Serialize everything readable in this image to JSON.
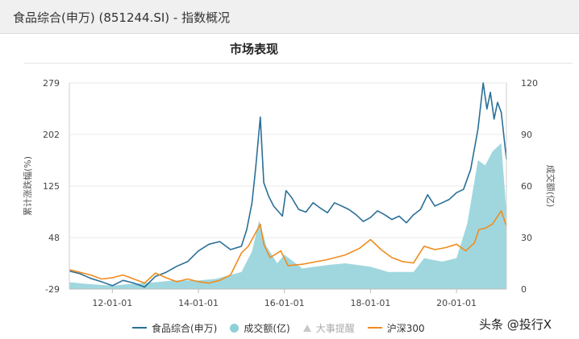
{
  "header": {
    "title": "食品综合(申万) (851244.SI) - 指数概况"
  },
  "section": {
    "title": "市场表现"
  },
  "legend": {
    "items": [
      {
        "label": "食品综合(申万)",
        "color": "#2a6f97",
        "marker": "line"
      },
      {
        "label": "成交额(亿)",
        "color": "#8fd0d8",
        "marker": "dot"
      },
      {
        "label": "大事提醒",
        "color": "#c8c8c8",
        "marker": "triangle"
      },
      {
        "label": "沪深300",
        "color": "#f08c1e",
        "marker": "line"
      }
    ]
  },
  "watermark": "头条 @投行X",
  "chart_data": {
    "type": "line",
    "x_tick_labels": [
      "12-01-01",
      "14-01-01",
      "16-01-01",
      "18-01-01",
      "20-01-01"
    ],
    "x_tick_dates": [
      "2012-01-01",
      "2014-01-01",
      "2016-01-01",
      "2018-01-01",
      "2020-01-01"
    ],
    "x_range": [
      "2011-01-01",
      "2021-02-28"
    ],
    "y_left": {
      "label": "累计涨跌幅(%)",
      "ticks": [
        279,
        202,
        125,
        48,
        -29
      ],
      "range": [
        -29,
        279
      ]
    },
    "y_right": {
      "label": "成交额(亿)",
      "ticks": [
        120,
        90,
        60,
        30,
        0
      ],
      "range": [
        0,
        120
      ]
    },
    "grid": "horizontal",
    "legend_position": "bottom",
    "series": [
      {
        "name": "食品综合(申万)",
        "axis": "left",
        "style": "line",
        "color": "#2a6f97",
        "points": [
          [
            "2011-01-01",
            -2
          ],
          [
            "2011-04-01",
            -6
          ],
          [
            "2011-07-01",
            -13
          ],
          [
            "2011-10-01",
            -18
          ],
          [
            "2012-01-01",
            -24
          ],
          [
            "2012-04-01",
            -16
          ],
          [
            "2012-07-01",
            -20
          ],
          [
            "2012-10-01",
            -26
          ],
          [
            "2013-01-01",
            -10
          ],
          [
            "2013-04-01",
            -4
          ],
          [
            "2013-07-01",
            5
          ],
          [
            "2013-10-01",
            12
          ],
          [
            "2014-01-01",
            28
          ],
          [
            "2014-04-01",
            38
          ],
          [
            "2014-07-01",
            42
          ],
          [
            "2014-10-01",
            30
          ],
          [
            "2015-01-01",
            35
          ],
          [
            "2015-02-15",
            60
          ],
          [
            "2015-04-01",
            100
          ],
          [
            "2015-05-01",
            150
          ],
          [
            "2015-06-10",
            228
          ],
          [
            "2015-07-10",
            130
          ],
          [
            "2015-08-20",
            110
          ],
          [
            "2015-10-01",
            95
          ],
          [
            "2015-12-15",
            80
          ],
          [
            "2016-01-15",
            118
          ],
          [
            "2016-03-01",
            108
          ],
          [
            "2016-05-01",
            90
          ],
          [
            "2016-07-01",
            86
          ],
          [
            "2016-09-01",
            100
          ],
          [
            "2016-11-01",
            92
          ],
          [
            "2017-01-01",
            85
          ],
          [
            "2017-03-01",
            100
          ],
          [
            "2017-05-01",
            95
          ],
          [
            "2017-07-01",
            90
          ],
          [
            "2017-09-01",
            82
          ],
          [
            "2017-11-01",
            72
          ],
          [
            "2018-01-01",
            78
          ],
          [
            "2018-03-01",
            88
          ],
          [
            "2018-05-01",
            82
          ],
          [
            "2018-07-01",
            75
          ],
          [
            "2018-09-01",
            80
          ],
          [
            "2018-11-01",
            70
          ],
          [
            "2019-01-01",
            82
          ],
          [
            "2019-03-01",
            90
          ],
          [
            "2019-05-01",
            112
          ],
          [
            "2019-07-01",
            95
          ],
          [
            "2019-09-01",
            100
          ],
          [
            "2019-11-01",
            105
          ],
          [
            "2020-01-01",
            115
          ],
          [
            "2020-03-01",
            120
          ],
          [
            "2020-05-01",
            150
          ],
          [
            "2020-07-01",
            210
          ],
          [
            "2020-08-15",
            279
          ],
          [
            "2020-09-15",
            240
          ],
          [
            "2020-10-15",
            265
          ],
          [
            "2020-11-15",
            225
          ],
          [
            "2020-12-15",
            250
          ],
          [
            "2021-01-15",
            235
          ],
          [
            "2021-02-28",
            165
          ]
        ]
      },
      {
        "name": "沪深300",
        "axis": "left",
        "style": "line",
        "color": "#f08c1e",
        "points": [
          [
            "2011-01-01",
            0
          ],
          [
            "2011-04-01",
            -4
          ],
          [
            "2011-07-01",
            -8
          ],
          [
            "2011-10-01",
            -14
          ],
          [
            "2012-01-01",
            -12
          ],
          [
            "2012-04-01",
            -8
          ],
          [
            "2012-07-01",
            -14
          ],
          [
            "2012-10-01",
            -20
          ],
          [
            "2013-01-01",
            -5
          ],
          [
            "2013-04-01",
            -12
          ],
          [
            "2013-07-01",
            -18
          ],
          [
            "2013-10-01",
            -14
          ],
          [
            "2014-01-01",
            -18
          ],
          [
            "2014-04-01",
            -20
          ],
          [
            "2014-07-01",
            -16
          ],
          [
            "2014-10-01",
            -8
          ],
          [
            "2015-01-01",
            25
          ],
          [
            "2015-03-01",
            35
          ],
          [
            "2015-06-10",
            68
          ],
          [
            "2015-07-10",
            38
          ],
          [
            "2015-09-01",
            18
          ],
          [
            "2015-12-01",
            28
          ],
          [
            "2016-02-01",
            6
          ],
          [
            "2016-06-01",
            8
          ],
          [
            "2016-10-01",
            12
          ],
          [
            "2017-01-01",
            15
          ],
          [
            "2017-06-01",
            22
          ],
          [
            "2017-10-01",
            32
          ],
          [
            "2018-01-01",
            45
          ],
          [
            "2018-04-01",
            30
          ],
          [
            "2018-07-01",
            18
          ],
          [
            "2018-10-01",
            12
          ],
          [
            "2019-01-01",
            10
          ],
          [
            "2019-04-01",
            35
          ],
          [
            "2019-07-01",
            30
          ],
          [
            "2019-10-01",
            33
          ],
          [
            "2020-01-01",
            38
          ],
          [
            "2020-03-20",
            28
          ],
          [
            "2020-06-01",
            40
          ],
          [
            "2020-07-10",
            60
          ],
          [
            "2020-09-01",
            62
          ],
          [
            "2020-11-01",
            68
          ],
          [
            "2021-01-15",
            88
          ],
          [
            "2021-02-28",
            65
          ]
        ]
      },
      {
        "name": "成交额(亿)",
        "axis": "right",
        "style": "area",
        "color": "#8fd0d8",
        "points": [
          [
            "2011-01-01",
            4
          ],
          [
            "2011-06-01",
            3
          ],
          [
            "2012-01-01",
            2
          ],
          [
            "2012-06-01",
            3
          ],
          [
            "2013-01-01",
            4
          ],
          [
            "2013-06-01",
            5
          ],
          [
            "2014-01-01",
            5
          ],
          [
            "2014-06-01",
            6
          ],
          [
            "2015-01-01",
            10
          ],
          [
            "2015-04-01",
            22
          ],
          [
            "2015-06-01",
            40
          ],
          [
            "2015-08-01",
            25
          ],
          [
            "2015-11-01",
            15
          ],
          [
            "2016-01-01",
            20
          ],
          [
            "2016-06-01",
            12
          ],
          [
            "2017-01-01",
            14
          ],
          [
            "2017-06-01",
            15
          ],
          [
            "2018-01-01",
            13
          ],
          [
            "2018-06-01",
            10
          ],
          [
            "2019-01-01",
            10
          ],
          [
            "2019-04-01",
            18
          ],
          [
            "2019-09-01",
            16
          ],
          [
            "2020-01-01",
            18
          ],
          [
            "2020-04-01",
            38
          ],
          [
            "2020-07-01",
            75
          ],
          [
            "2020-09-01",
            72
          ],
          [
            "2020-11-01",
            80
          ],
          [
            "2021-01-15",
            85
          ],
          [
            "2021-02-28",
            45
          ]
        ]
      }
    ]
  }
}
